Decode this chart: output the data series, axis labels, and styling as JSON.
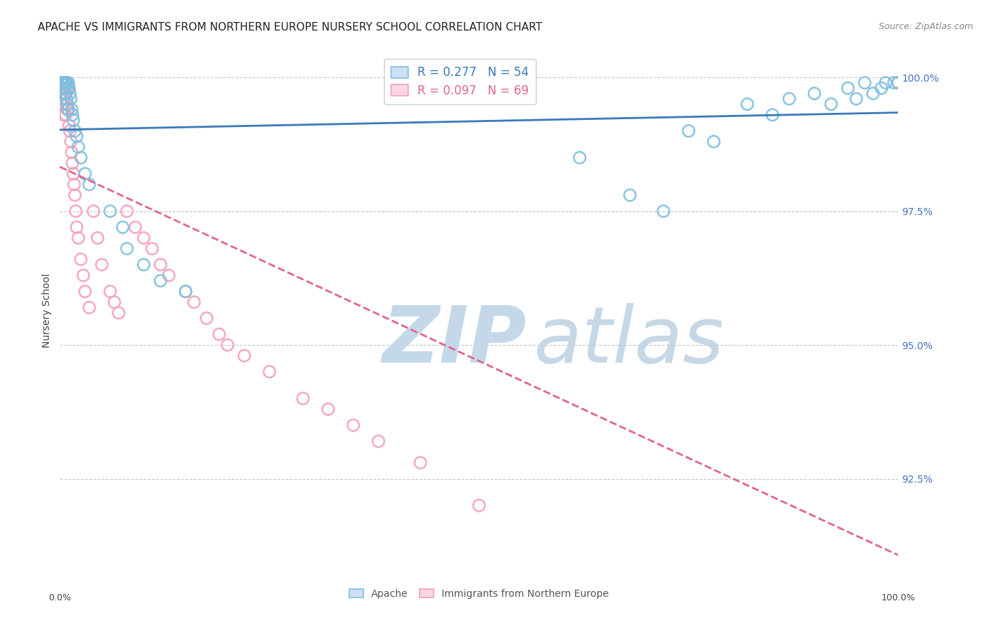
{
  "title": "APACHE VS IMMIGRANTS FROM NORTHERN EUROPE NURSERY SCHOOL CORRELATION CHART",
  "source": "Source: ZipAtlas.com",
  "ylabel": "Nursery School",
  "ytick_labels": [
    "100.0%",
    "97.5%",
    "95.0%",
    "92.5%"
  ],
  "ytick_values": [
    1.0,
    0.975,
    0.95,
    0.925
  ],
  "xmin": 0.0,
  "xmax": 1.0,
  "ymin": 0.908,
  "ymax": 1.005,
  "legend_apache": "Apache",
  "legend_immigrants": "Immigrants from Northern Europe",
  "apache_color": "#7fbfdf",
  "immigrants_color": "#f4a0ba",
  "apache_line_color": "#3a7aba",
  "immigrants_line_color": "#e06888",
  "grid_color": "#c8c8c8",
  "apache_x": [
    0.001,
    0.002,
    0.003,
    0.003,
    0.004,
    0.004,
    0.005,
    0.005,
    0.006,
    0.006,
    0.007,
    0.007,
    0.008,
    0.008,
    0.009,
    0.009,
    0.01,
    0.01,
    0.011,
    0.012,
    0.013,
    0.014,
    0.015,
    0.016,
    0.018,
    0.02,
    0.022,
    0.025,
    0.03,
    0.035,
    0.06,
    0.075,
    0.08,
    0.1,
    0.12,
    0.15,
    0.62,
    0.68,
    0.72,
    0.75,
    0.78,
    0.82,
    0.85,
    0.87,
    0.9,
    0.92,
    0.94,
    0.95,
    0.96,
    0.97,
    0.98,
    0.985,
    0.995,
    1.0
  ],
  "apache_y": [
    0.999,
    0.999,
    0.999,
    0.998,
    0.999,
    0.998,
    0.999,
    0.998,
    0.999,
    0.997,
    0.999,
    0.997,
    0.999,
    0.996,
    0.999,
    0.995,
    0.999,
    0.994,
    0.998,
    0.997,
    0.996,
    0.994,
    0.993,
    0.992,
    0.99,
    0.989,
    0.987,
    0.985,
    0.982,
    0.98,
    0.975,
    0.972,
    0.968,
    0.965,
    0.962,
    0.96,
    0.985,
    0.978,
    0.975,
    0.99,
    0.988,
    0.995,
    0.993,
    0.996,
    0.997,
    0.995,
    0.998,
    0.996,
    0.999,
    0.997,
    0.998,
    0.999,
    0.999,
    0.999
  ],
  "immigrants_x": [
    0.001,
    0.001,
    0.002,
    0.002,
    0.002,
    0.003,
    0.003,
    0.003,
    0.003,
    0.004,
    0.004,
    0.004,
    0.004,
    0.005,
    0.005,
    0.005,
    0.006,
    0.006,
    0.006,
    0.007,
    0.007,
    0.007,
    0.008,
    0.008,
    0.009,
    0.009,
    0.01,
    0.01,
    0.011,
    0.012,
    0.013,
    0.014,
    0.015,
    0.016,
    0.017,
    0.018,
    0.019,
    0.02,
    0.022,
    0.025,
    0.028,
    0.03,
    0.035,
    0.04,
    0.045,
    0.05,
    0.06,
    0.065,
    0.07,
    0.08,
    0.09,
    0.1,
    0.11,
    0.12,
    0.13,
    0.15,
    0.16,
    0.175,
    0.19,
    0.2,
    0.22,
    0.25,
    0.29,
    0.32,
    0.35,
    0.38,
    0.43,
    0.5,
    1.0
  ],
  "immigrants_y": [
    0.999,
    0.998,
    0.999,
    0.998,
    0.996,
    0.999,
    0.998,
    0.997,
    0.995,
    0.999,
    0.998,
    0.996,
    0.993,
    0.999,
    0.997,
    0.995,
    0.999,
    0.997,
    0.993,
    0.999,
    0.997,
    0.993,
    0.998,
    0.995,
    0.998,
    0.994,
    0.998,
    0.994,
    0.991,
    0.99,
    0.988,
    0.986,
    0.984,
    0.982,
    0.98,
    0.978,
    0.975,
    0.972,
    0.97,
    0.966,
    0.963,
    0.96,
    0.957,
    0.975,
    0.97,
    0.965,
    0.96,
    0.958,
    0.956,
    0.975,
    0.972,
    0.97,
    0.968,
    0.965,
    0.963,
    0.96,
    0.958,
    0.955,
    0.952,
    0.95,
    0.948,
    0.945,
    0.94,
    0.938,
    0.935,
    0.932,
    0.928,
    0.92,
    0.999
  ]
}
